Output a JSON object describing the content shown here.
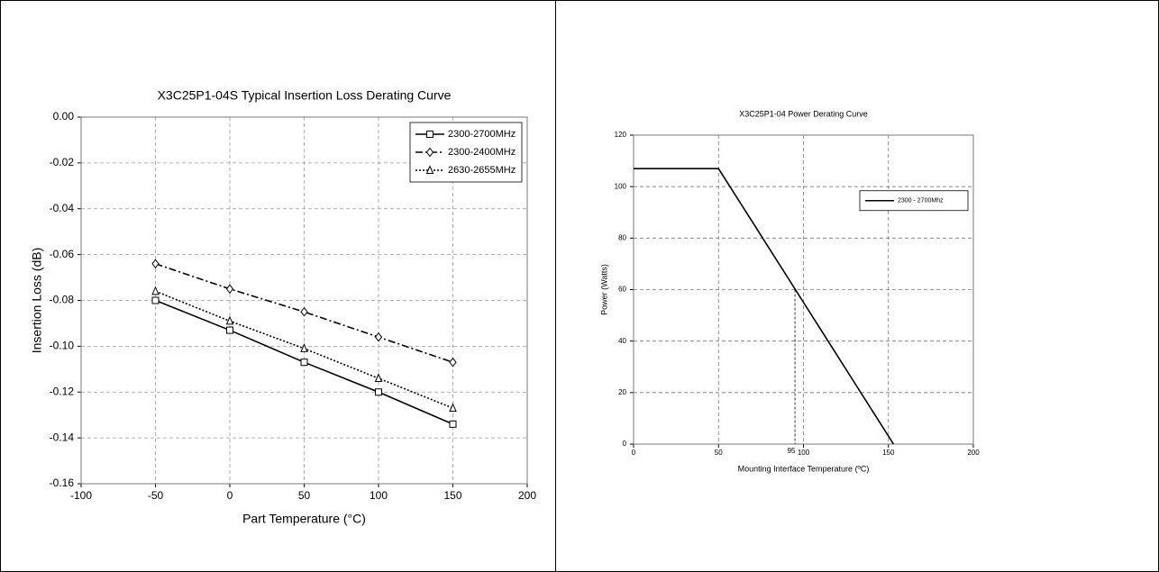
{
  "chart_data": [
    {
      "type": "line",
      "title": "X3C25P1-04S Typical Insertion Loss Derating Curve",
      "x_label": "Part Temperature (°C)",
      "y_label": "Insertion Loss (dB)",
      "x": [
        -50,
        0,
        50,
        100,
        150
      ],
      "series": [
        {
          "name": "2300-2700MHz",
          "color": "#000000",
          "dash": "solid",
          "marker": "square",
          "values": [
            -0.08,
            -0.093,
            -0.107,
            -0.12,
            -0.134
          ]
        },
        {
          "name": "2300-2400MHz",
          "color": "#000000",
          "dash": "dashdot",
          "marker": "diamond",
          "values": [
            -0.064,
            -0.075,
            -0.085,
            -0.096,
            -0.107
          ]
        },
        {
          "name": "2630-2655MHz",
          "color": "#000000",
          "dash": "dotted",
          "marker": "triangle",
          "values": [
            -0.076,
            -0.089,
            -0.101,
            -0.114,
            -0.127
          ]
        }
      ],
      "xlim": [
        -100,
        200
      ],
      "xticks": [
        -100,
        -50,
        0,
        50,
        100,
        150,
        200
      ],
      "ylim": [
        -0.16,
        0
      ],
      "yticks": [
        {
          "value": -0.16,
          "label": "-0.16"
        },
        {
          "value": -0.14,
          "label": "-0.14"
        },
        {
          "value": -0.12,
          "label": "-0.12"
        },
        {
          "value": -0.1,
          "label": "-0.10"
        },
        {
          "value": -0.08,
          "label": "-0.08"
        },
        {
          "value": -0.06,
          "label": "-0.06"
        },
        {
          "value": -0.04,
          "label": "-0.04"
        },
        {
          "value": -0.02,
          "label": "-0.02"
        },
        {
          "value": 0,
          "label": "0.00"
        }
      ],
      "grid": true,
      "legend": "top-right"
    },
    {
      "type": "line",
      "title": "X3C25P1-04 Power Derating Curve",
      "x_label": "Mounting Interface Temperature (ºC)",
      "y_label": "Power (Watts)",
      "series": [
        {
          "name": "2300 - 2700Mhz",
          "color": "#000000",
          "dash": "solid",
          "x": [
            0,
            50,
            153
          ],
          "values": [
            107,
            107,
            0
          ]
        }
      ],
      "reference": {
        "x": 95,
        "y": 60
      },
      "xlim": [
        0,
        200
      ],
      "xticks": [
        0,
        50,
        100,
        150,
        200
      ],
      "ylim": [
        0,
        120
      ],
      "yticks": [
        0,
        20,
        40,
        60,
        80,
        100,
        120
      ],
      "grid": true,
      "legend": "center-right"
    }
  ]
}
